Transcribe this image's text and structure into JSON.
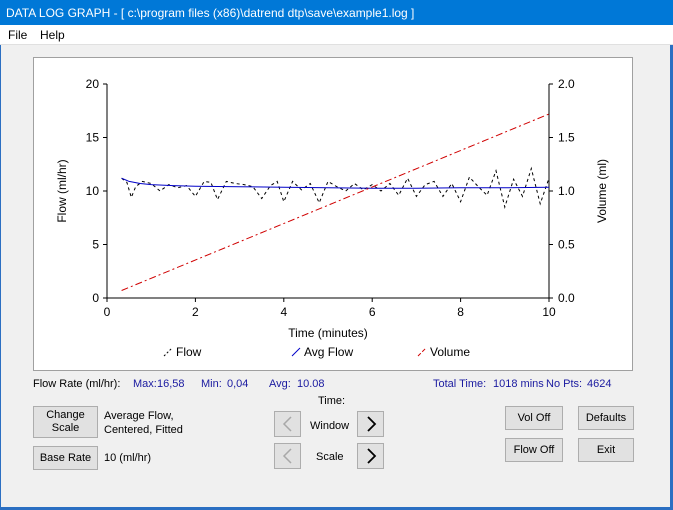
{
  "window": {
    "title": "DATA LOG GRAPH - [ c:\\program files (x86)\\datrend dtp\\save\\example1.log ]"
  },
  "menu": {
    "file": "File",
    "help": "Help"
  },
  "info": {
    "flow_rate_label": "Flow Rate (ml/hr):",
    "max_label": "Max:",
    "max_value": "16,58",
    "min_label": "Min:",
    "min_value": "0,04",
    "avg_label": "Avg:",
    "avg_value": "10.08",
    "total_time_label": "Total Time:",
    "total_time_value": "1018 mins",
    "no_pts_label": "No Pts:",
    "no_pts_value": "4624"
  },
  "controls": {
    "change_scale_line1": "Change",
    "change_scale_line2": "Scale",
    "avg_desc_line1": "Average Flow,",
    "avg_desc_line2": "Centered, Fitted",
    "base_rate_label": "Base Rate",
    "base_rate_value": "10 (ml/hr)",
    "time_label": "Time:",
    "window_label": "Window",
    "scale_label": "Scale",
    "vol_off": "Vol Off",
    "flow_off": "Flow Off",
    "defaults": "Defaults",
    "exit": "Exit"
  },
  "chart_data": {
    "type": "line",
    "xlabel": "Time (minutes)",
    "ylabel": "Flow (ml/hr)",
    "y2label": "Volume (ml)",
    "xlim": [
      0,
      10
    ],
    "ylim": [
      0,
      20
    ],
    "y2lim": [
      0,
      2.0
    ],
    "x_ticks": [
      "0",
      "2",
      "4",
      "6",
      "8",
      "10"
    ],
    "y_ticks": [
      "0",
      "5",
      "10",
      "15",
      "20"
    ],
    "y2_ticks": [
      "0.0",
      "0.5",
      "1.0",
      "1.5",
      "2.0"
    ],
    "grid": false,
    "legend_position": "bottom",
    "series": [
      {
        "name": "Flow",
        "axis": "left",
        "color": "#000000",
        "style": "dashed",
        "x": [
          0.33,
          0.45,
          0.55,
          0.65,
          0.8,
          1.0,
          1.2,
          1.4,
          1.6,
          1.8,
          2.0,
          2.2,
          2.35,
          2.5,
          2.7,
          2.9,
          3.1,
          3.3,
          3.5,
          3.7,
          3.85,
          4.0,
          4.2,
          4.4,
          4.6,
          4.8,
          5.0,
          5.2,
          5.4,
          5.6,
          5.8,
          6.0,
          6.2,
          6.4,
          6.6,
          6.8,
          7.0,
          7.2,
          7.4,
          7.6,
          7.8,
          8.0,
          8.2,
          8.4,
          8.6,
          8.8,
          9.0,
          9.2,
          9.4,
          9.6,
          9.8,
          10.0
        ],
        "values": [
          11.2,
          10.8,
          9.4,
          10.4,
          10.9,
          10.7,
          10.0,
          10.6,
          10.3,
          10.5,
          9.5,
          10.9,
          10.8,
          9.2,
          10.9,
          10.7,
          10.6,
          10.4,
          9.3,
          10.5,
          10.9,
          9.0,
          10.9,
          10.1,
          10.7,
          8.9,
          10.9,
          10.4,
          10.0,
          10.7,
          10.1,
          10.6,
          10.0,
          10.7,
          9.6,
          11.2,
          9.5,
          10.6,
          10.9,
          9.5,
          10.7,
          9.0,
          11.3,
          10.4,
          9.6,
          11.9,
          8.5,
          11.1,
          9.5,
          12.1,
          8.8,
          11.2
        ]
      },
      {
        "name": "Avg Flow",
        "axis": "left",
        "color": "#0000c8",
        "style": "solid",
        "x": [
          0.33,
          0.5,
          0.75,
          1.0,
          1.5,
          2.0,
          3.0,
          4.0,
          5.0,
          6.0,
          7.0,
          8.0,
          9.0,
          10.0
        ],
        "values": [
          11.2,
          10.9,
          10.7,
          10.6,
          10.5,
          10.45,
          10.4,
          10.35,
          10.3,
          10.25,
          10.25,
          10.3,
          10.3,
          10.35
        ]
      },
      {
        "name": "Volume",
        "axis": "right",
        "color": "#d00000",
        "style": "dashdot",
        "x": [
          0.33,
          10.0
        ],
        "values": [
          0.07,
          1.72
        ]
      }
    ]
  }
}
